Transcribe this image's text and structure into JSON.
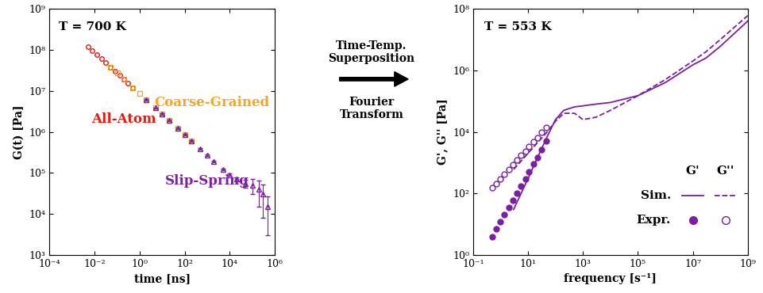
{
  "chart_data": [
    {
      "type": "scatter",
      "annotation": "T = 700 K",
      "x_label": "time [ns]",
      "y_label": "G(t) [Pa]",
      "log": true,
      "xlim": [
        0.0001,
        1000000
      ],
      "xticks": [
        {
          "value": 0.0001,
          "label": "10⁻⁴"
        },
        {
          "value": 0.01,
          "label": "10⁻²"
        },
        {
          "value": 1,
          "label": "10⁰"
        },
        {
          "value": 100,
          "label": "10²"
        },
        {
          "value": 10000,
          "label": "10⁴"
        },
        {
          "value": 1000000,
          "label": "10⁶"
        }
      ],
      "ylim": [
        1000,
        1000000000
      ],
      "yticks": [
        {
          "value": 1000,
          "label": "10³"
        },
        {
          "value": 10000,
          "label": "10⁴"
        },
        {
          "value": 100000,
          "label": "10⁵"
        },
        {
          "value": 1000000,
          "label": "10⁶"
        },
        {
          "value": 10000000,
          "label": "10⁷"
        },
        {
          "value": 100000000,
          "label": "10⁸"
        },
        {
          "value": 1000000000,
          "label": "10⁹"
        }
      ],
      "series": [
        {
          "name": "All-Atom",
          "color": "#e8190f",
          "marker": "o",
          "x": [
            0.005,
            0.008,
            0.013,
            0.02,
            0.03,
            0.05,
            0.08,
            0.13,
            0.2,
            0.3,
            0.5
          ],
          "values": [
            120000000,
            95000000,
            75000000,
            60000000,
            49000000,
            38000000,
            30000000,
            24000000,
            19000000,
            15500000,
            12000000
          ]
        },
        {
          "name": "Coarse-Grained",
          "color": "#f5a623",
          "marker": "s",
          "x": [
            0.05,
            0.1,
            0.2,
            0.5,
            1,
            2,
            5,
            10,
            20,
            50,
            100,
            200
          ],
          "values": [
            38000000,
            27000000,
            19000000,
            12000000,
            8500000,
            6000000,
            3800000,
            2700000,
            1900000,
            1200000,
            850000,
            600000
          ]
        },
        {
          "name": "Slip-Spring",
          "color": "#7b1fa2",
          "marker": "^",
          "x": [
            2,
            5,
            10,
            20,
            50,
            100,
            200,
            500,
            1000,
            2000,
            5000,
            10000,
            20000,
            50000,
            100000,
            200000,
            300000,
            500000
          ],
          "values": [
            6000000,
            3800000,
            2700000,
            1900000,
            1200000,
            850000,
            600000,
            380000,
            270000,
            190000,
            120000,
            90000,
            70000,
            55000,
            50000,
            40000,
            30000,
            15000
          ],
          "errors": [
            200000,
            150000,
            100000,
            80000,
            50000,
            30000,
            20000,
            15000,
            10000,
            8000,
            6000,
            6000,
            8000,
            12000,
            20000,
            25000,
            22000,
            12000
          ]
        }
      ]
    },
    {
      "type": "line",
      "annotation": "T = 553 K",
      "x_label": "frequency [s⁻¹]",
      "y_label": "G', G'' [Pa]",
      "log": true,
      "xlim": [
        0.1,
        1000000000
      ],
      "xticks": [
        {
          "value": 0.1,
          "label": "10⁻¹"
        },
        {
          "value": 10,
          "label": "10¹"
        },
        {
          "value": 1000,
          "label": "10³"
        },
        {
          "value": 100000,
          "label": "10⁵"
        },
        {
          "value": 10000000,
          "label": "10⁷"
        },
        {
          "value": 1000000000,
          "label": "10⁹"
        }
      ],
      "ylim": [
        1,
        100000000
      ],
      "yticks": [
        {
          "value": 1,
          "label": "10⁰"
        },
        {
          "value": 100,
          "label": "10²"
        },
        {
          "value": 10000,
          "label": "10⁴"
        },
        {
          "value": 1000000,
          "label": "10⁶"
        },
        {
          "value": 100000000,
          "label": "10⁸"
        }
      ],
      "legend_table": {
        "columns": [
          "G'",
          "G''"
        ],
        "rows": [
          "Sim.",
          "Expr."
        ]
      },
      "series": [
        {
          "method": "Sim.",
          "modulus": "G'",
          "color": "#7b1fa2",
          "type": "line",
          "line_style": "solid",
          "x": [
            3,
            5,
            10,
            20,
            50,
            100,
            200,
            500,
            1000,
            3000,
            10000,
            100000,
            1000000,
            10000000,
            30000000,
            100000000,
            1000000000
          ],
          "values": [
            30,
            80,
            300,
            1200,
            7000,
            25000,
            50000,
            65000,
            70000,
            80000,
            90000,
            150000,
            400000,
            1500000,
            2500000,
            6000000,
            40000000
          ]
        },
        {
          "method": "Sim.",
          "modulus": "G''",
          "color": "#7b1fa2",
          "type": "line",
          "line_style": "dashed",
          "x": [
            3,
            5,
            10,
            20,
            50,
            100,
            200,
            500,
            1000,
            3000,
            10000,
            100000,
            1000000,
            10000000,
            30000000,
            100000000,
            1000000000
          ],
          "values": [
            600,
            1000,
            2000,
            4000,
            10000,
            22000,
            40000,
            40000,
            25000,
            30000,
            50000,
            150000,
            500000,
            2000000,
            4000000,
            10000000,
            60000000
          ]
        },
        {
          "method": "Expr.",
          "modulus": "G'",
          "color": "#7b1fa2",
          "type": "scatter",
          "marker": "filled",
          "x": [
            0.5,
            0.7,
            1,
            1.4,
            2,
            2.8,
            4,
            5.6,
            8,
            11,
            16,
            22,
            32,
            45
          ],
          "values": [
            4,
            7,
            12,
            20,
            35,
            60,
            100,
            170,
            300,
            500,
            900,
            1500,
            2700,
            5000
          ]
        },
        {
          "method": "Expr.",
          "modulus": "G''",
          "color": "#7b1fa2",
          "type": "scatter",
          "marker": "open",
          "x": [
            0.5,
            0.7,
            1,
            1.4,
            2,
            2.8,
            4,
            5.6,
            8,
            11,
            16,
            22,
            32,
            45
          ],
          "values": [
            150,
            210,
            300,
            420,
            600,
            840,
            1200,
            1700,
            2400,
            3300,
            4800,
            6600,
            9500,
            13500
          ]
        }
      ]
    }
  ],
  "arrow": {
    "labels": [
      "Time-Temp.\nSuperposition",
      "Fourier\nTransform"
    ]
  }
}
